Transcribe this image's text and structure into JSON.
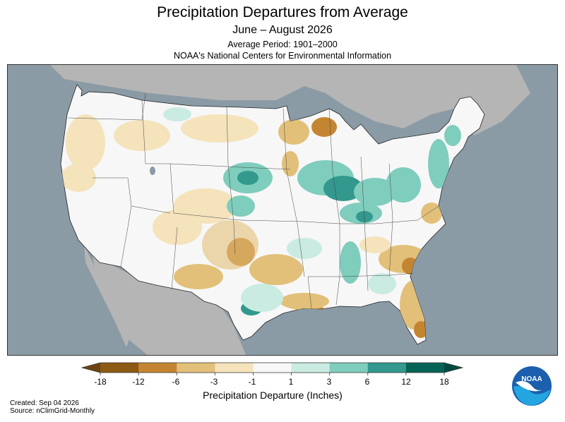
{
  "header": {
    "title": "Precipitation Departures from Average",
    "subtitle": "June – August 2026",
    "period": "Average Period: 1901–2000",
    "organization": "NOAA's National Centers for Environmental Information"
  },
  "legend": {
    "ticks": [
      "-18",
      "-12",
      "-6",
      "-3",
      "-1",
      "1",
      "3",
      "6",
      "12",
      "18"
    ],
    "colors": [
      "#8c5a14",
      "#c48532",
      "#e2c07a",
      "#f4e3bb",
      "#f7f7f7",
      "#c9ebe2",
      "#7fcdbd",
      "#33988e",
      "#036456"
    ],
    "title": "Precipitation Departure (Inches)"
  },
  "footer": {
    "created": "Created: Sep 04 2026",
    "source": "Source: nClimGrid-Monthly"
  },
  "logo": {
    "text": "NOAA",
    "icon": "noaa-logo-icon"
  },
  "map": {
    "background_color": "#8a9ba6",
    "land_color": "#b5b5b5",
    "region": "Contiguous United States"
  }
}
